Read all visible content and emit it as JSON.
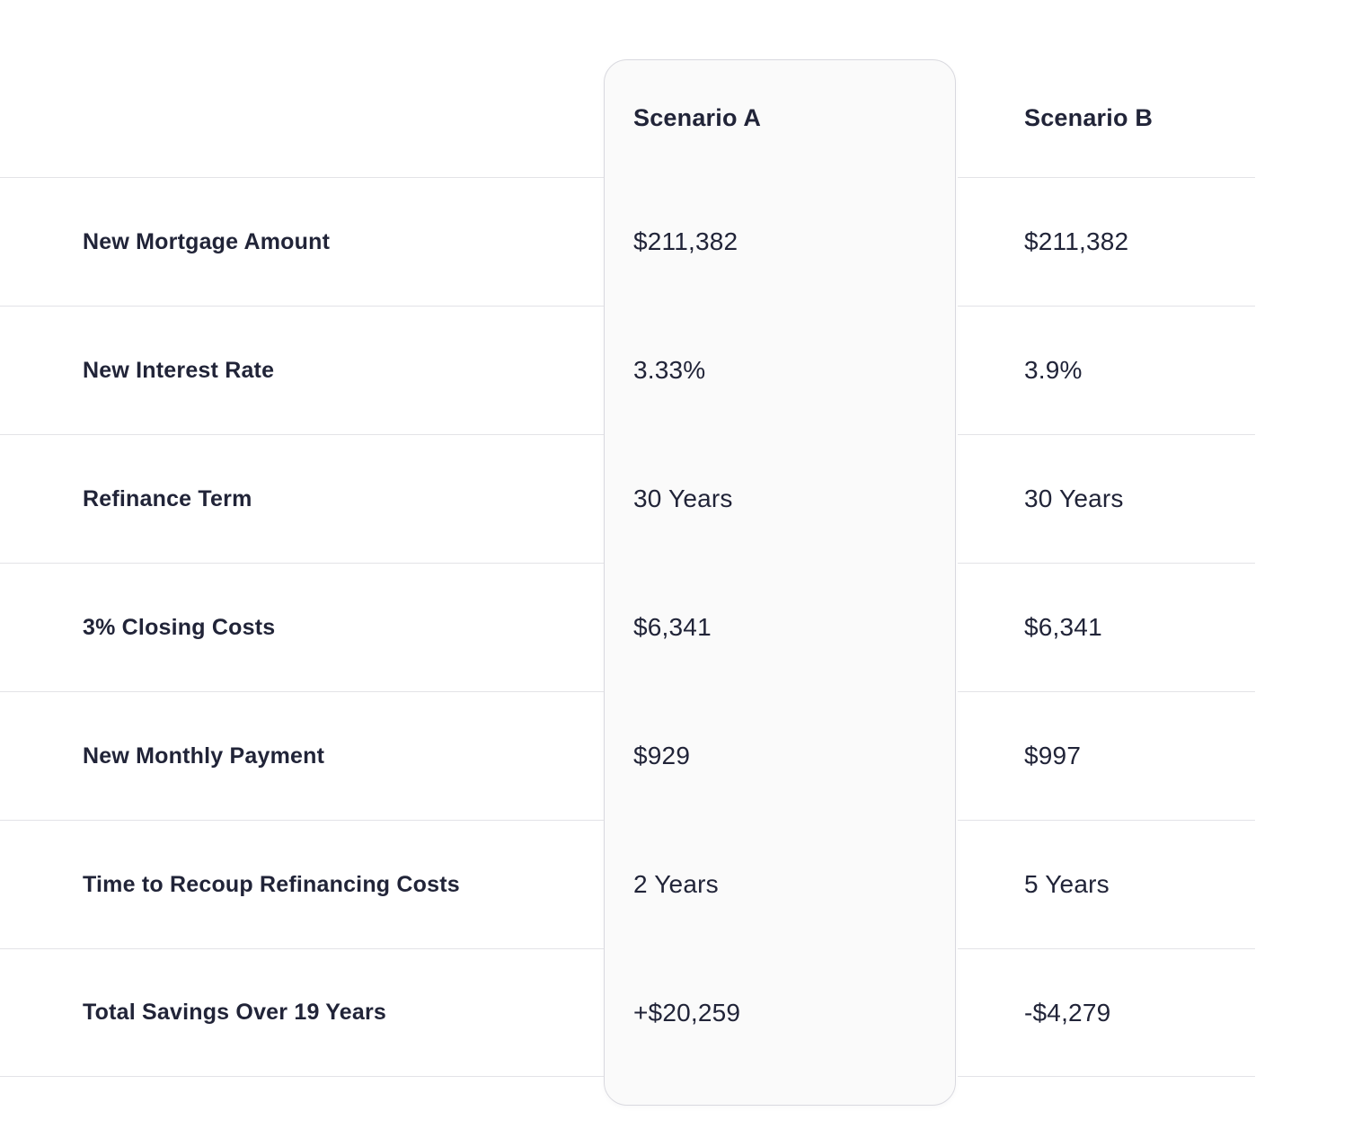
{
  "table": {
    "columns": [
      {
        "key": "scenario_a",
        "label": "Scenario A",
        "highlighted": true
      },
      {
        "key": "scenario_b",
        "label": "Scenario B",
        "highlighted": false
      }
    ],
    "rows": [
      {
        "label": "New Mortgage Amount",
        "scenario_a": "$211,382",
        "scenario_b": "$211,382"
      },
      {
        "label": "New Interest Rate",
        "scenario_a": "3.33%",
        "scenario_b": "3.9%"
      },
      {
        "label": "Refinance Term",
        "scenario_a": "30 Years",
        "scenario_b": "30 Years"
      },
      {
        "label": "3% Closing Costs",
        "scenario_a": "$6,341",
        "scenario_b": "$6,341"
      },
      {
        "label": "New Monthly Payment",
        "scenario_a": "$929",
        "scenario_b": "$997"
      },
      {
        "label": "Time to Recoup Refinancing Costs",
        "scenario_a": "2 Years",
        "scenario_b": "5 Years"
      },
      {
        "label": "Total Savings Over 19 Years",
        "scenario_a": "+$20,259",
        "scenario_b": "-$4,279"
      }
    ]
  },
  "colors": {
    "text": "#212438",
    "divider": "#e3e3e7",
    "card_background": "#fafafa",
    "card_border": "#d9d9df",
    "page_background": "#ffffff"
  }
}
